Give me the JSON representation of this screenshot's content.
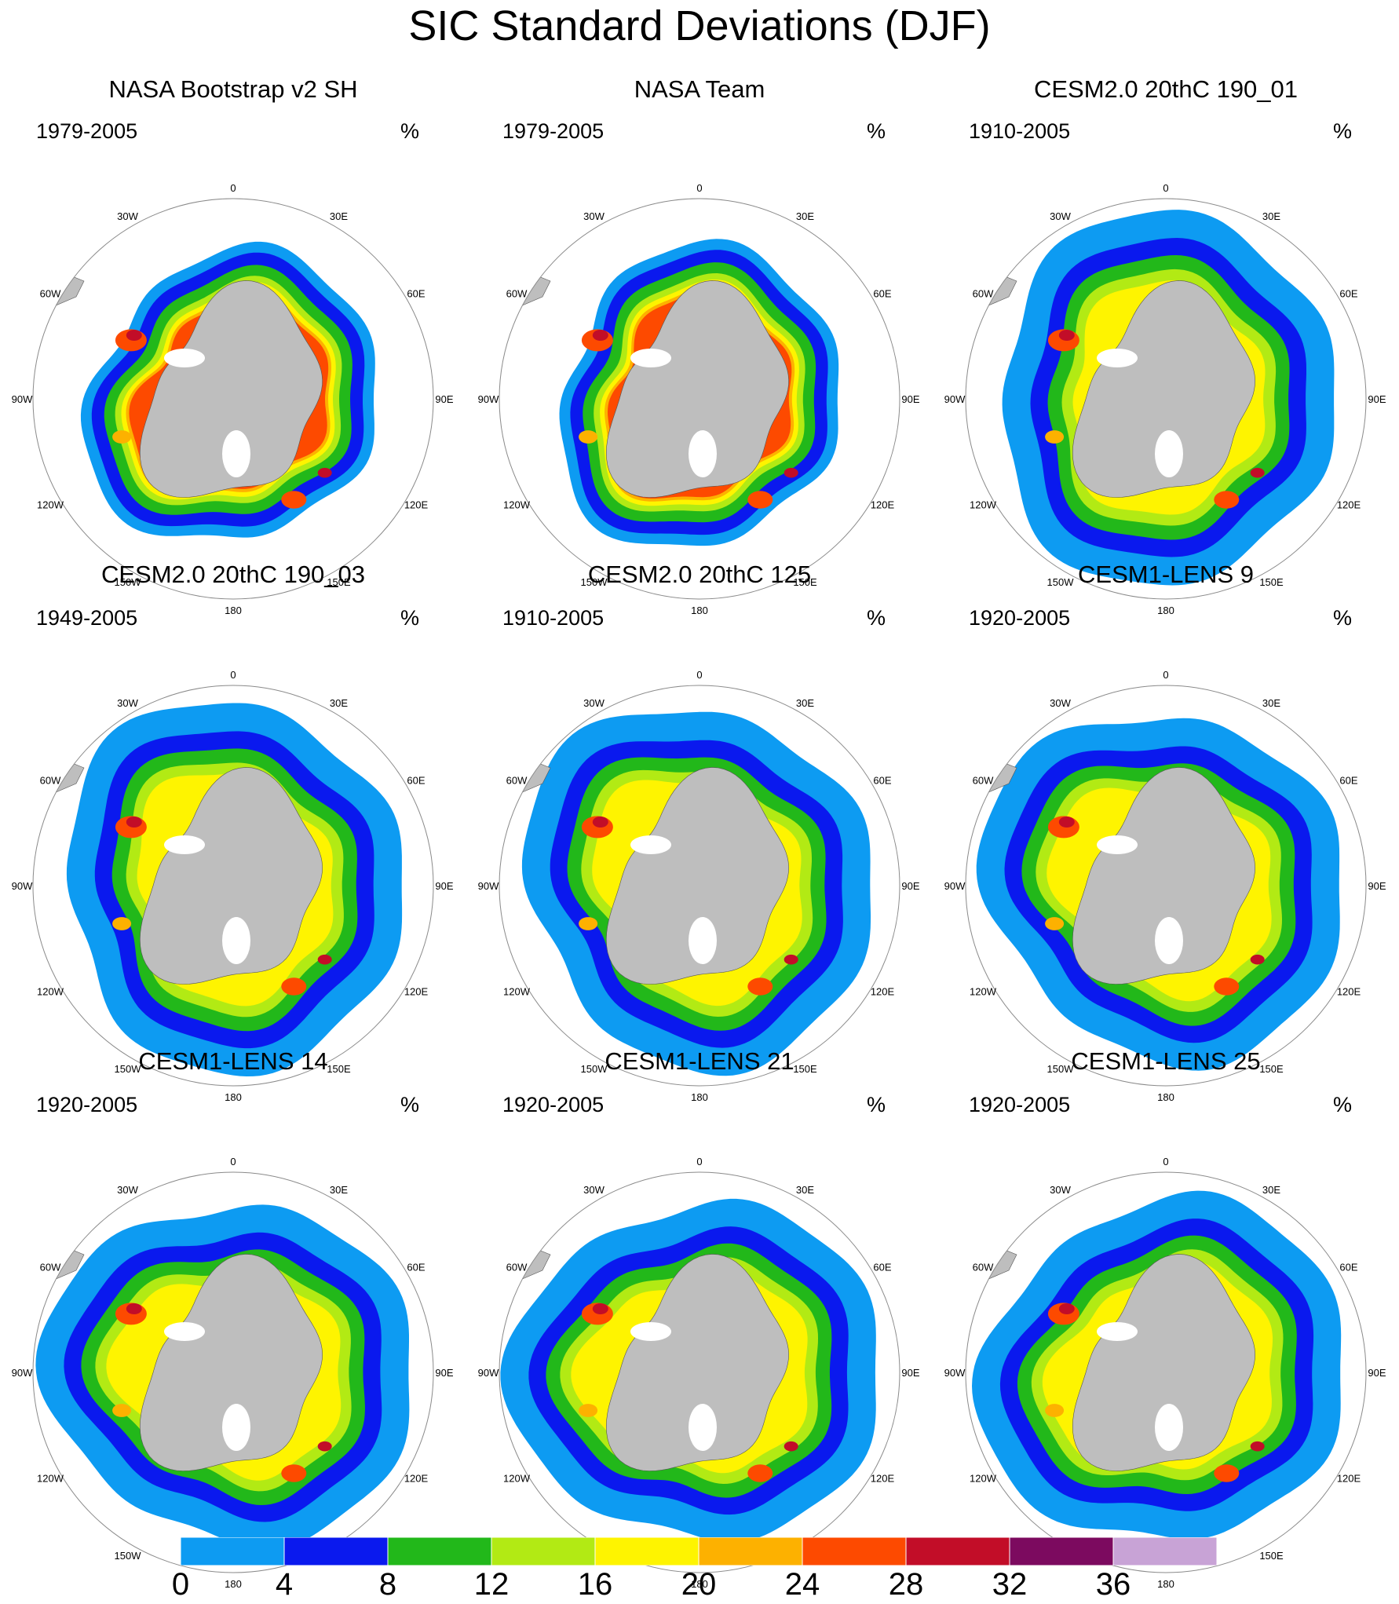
{
  "title": "SIC Standard Deviations (DJF)",
  "units": "%",
  "longitude_labels": [
    "0",
    "30E",
    "60E",
    "90E",
    "120E",
    "150E",
    "180",
    "150W",
    "120W",
    "90W",
    "60W",
    "30W"
  ],
  "colors": {
    "land": "#bebebe",
    "grid": "#8a8a8a",
    "bins": [
      "#0d9bf2",
      "#0a19ee",
      "#22b81a",
      "#b2ea14",
      "#fef400",
      "#fdb100",
      "#fd4a00",
      "#c20d28",
      "#7c0a5f",
      "#c8a3d6"
    ]
  },
  "panels": [
    {
      "title": "NASA Bootstrap v2 SH",
      "period": "1979-2005"
    },
    {
      "title": "NASA Team",
      "period": "1979-2005"
    },
    {
      "title": "CESM2.0 20thC 190_01",
      "period": "1910-2005"
    },
    {
      "title": "CESM2.0 20thC 190_03",
      "period": "1949-2005"
    },
    {
      "title": "CESM2.0 20thC 125",
      "period": "1910-2005"
    },
    {
      "title": "CESM1-LENS 9",
      "period": "1920-2005"
    },
    {
      "title": "CESM1-LENS 14",
      "period": "1920-2005"
    },
    {
      "title": "CESM1-LENS 21",
      "period": "1920-2005"
    },
    {
      "title": "CESM1-LENS 25",
      "period": "1920-2005"
    }
  ],
  "colorbar": {
    "labels": [
      "0",
      "4",
      "8",
      "12",
      "16",
      "20",
      "24",
      "28",
      "32",
      "36"
    ],
    "bin_edges": [
      0,
      4,
      8,
      12,
      16,
      20,
      24,
      28,
      32,
      36,
      40
    ]
  }
}
